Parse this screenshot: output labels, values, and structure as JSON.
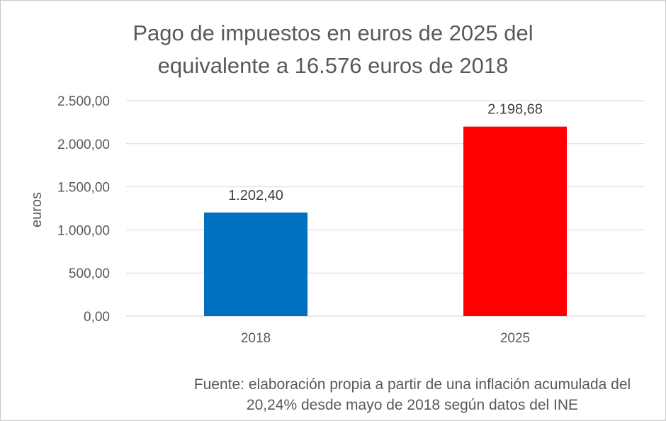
{
  "chart_data": {
    "type": "bar",
    "title_lines": [
      "Pago de impuestos en euros de 2025 del",
      "equivalente a 16.576 euros de 2018"
    ],
    "categories": [
      "2018",
      "2025"
    ],
    "values": [
      1202.4,
      2198.68
    ],
    "data_labels": [
      "1.202,40",
      "2.198,68"
    ],
    "bar_colors": [
      "#0070C0",
      "#FF0000"
    ],
    "ylabel": "euros",
    "xlabel": "",
    "ylim": [
      0,
      2500
    ],
    "yticks": [
      0,
      500,
      1000,
      1500,
      2000,
      2500
    ],
    "ytick_labels": [
      "0,00",
      "500,00",
      "1.000,00",
      "1.500,00",
      "2.000,00",
      "2.500,00"
    ],
    "grid": true,
    "legend": false
  },
  "source_lines": [
    "Fuente: elaboración propia a partir de una inflación acumulada del",
    "20,24% desde mayo de 2018 según datos del INE"
  ]
}
